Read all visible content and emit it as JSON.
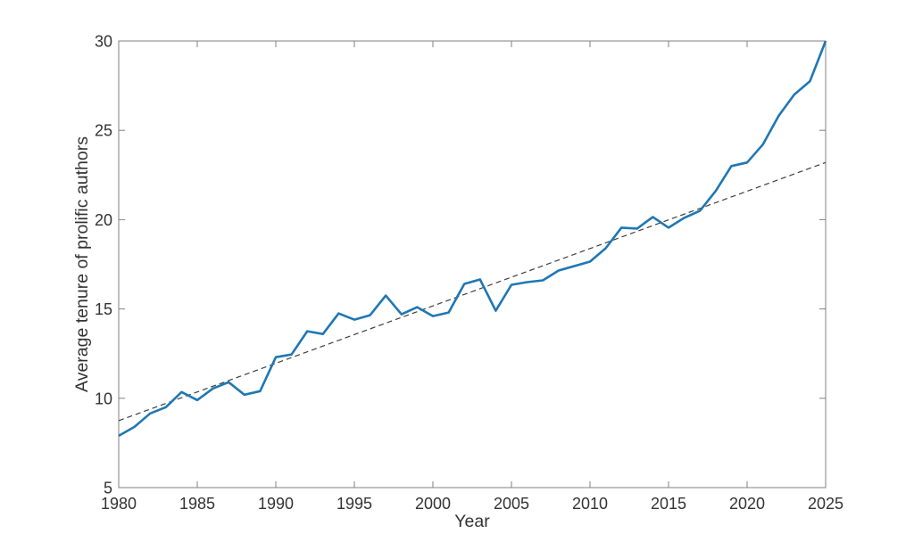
{
  "chart_data": {
    "type": "line",
    "title": "",
    "xlabel": "Year",
    "ylabel": "Average tenure of prolific authors",
    "xlim": [
      1980,
      2025
    ],
    "ylim": [
      5,
      30
    ],
    "xticks": [
      1980,
      1985,
      1990,
      1995,
      2000,
      2005,
      2010,
      2015,
      2020,
      2025
    ],
    "yticks": [
      5,
      10,
      15,
      20,
      25,
      30
    ],
    "grid": false,
    "legend": false,
    "box": true,
    "tick_direction": "in",
    "background": "#ffffff",
    "axis_color": "#808080",
    "label_color": "#333333",
    "series": [
      {
        "name": "Average tenure of prolific authors",
        "style": "solid",
        "color": "#1f77b4",
        "line_width": 2.6,
        "x": [
          1980,
          1981,
          1982,
          1983,
          1984,
          1985,
          1986,
          1987,
          1988,
          1989,
          1990,
          1991,
          1992,
          1993,
          1994,
          1995,
          1996,
          1997,
          1998,
          1999,
          2000,
          2001,
          2002,
          2003,
          2004,
          2005,
          2006,
          2007,
          2008,
          2009,
          2010,
          2011,
          2012,
          2013,
          2014,
          2015,
          2016,
          2017,
          2018,
          2019,
          2020,
          2021,
          2022,
          2023,
          2024,
          2025
        ],
        "y": [
          7.9,
          8.4,
          9.15,
          9.5,
          10.35,
          9.9,
          10.55,
          10.9,
          10.2,
          10.4,
          12.3,
          12.45,
          13.75,
          13.6,
          14.75,
          14.4,
          14.65,
          15.75,
          14.7,
          15.1,
          14.6,
          14.8,
          16.4,
          16.65,
          14.9,
          16.35,
          16.5,
          16.6,
          17.15,
          17.4,
          17.65,
          18.4,
          19.55,
          19.5,
          20.15,
          19.55,
          20.1,
          20.5,
          21.6,
          23.0,
          23.2,
          24.2,
          25.8,
          27.0,
          27.75,
          30.0
        ]
      },
      {
        "name": "Linear trend",
        "style": "dashed",
        "color": "#3f3f3f",
        "line_width": 1.2,
        "dash": "6 4",
        "x": [
          1980,
          2025
        ],
        "y": [
          8.75,
          23.2
        ]
      }
    ]
  }
}
